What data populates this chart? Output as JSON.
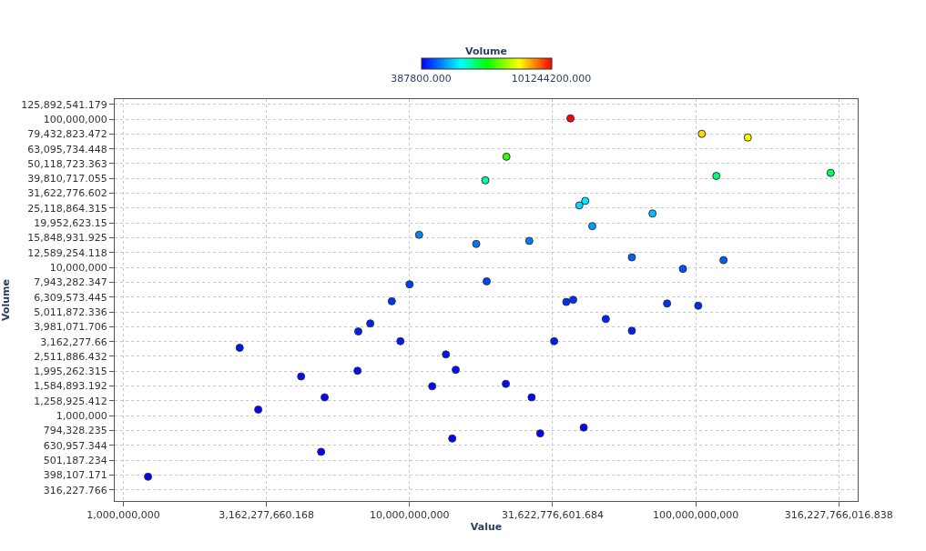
{
  "chart_data": {
    "type": "scatter",
    "xlabel": "Value",
    "ylabel": "Volume",
    "clabel": "Volume",
    "log": "xy",
    "grid": true,
    "marker": "circle",
    "legend": false,
    "x": [
      36500000000.0,
      105000000000.0,
      152000000000.0,
      21800000000.0,
      18400000000.0,
      118000000000.0,
      296000000000.0,
      41100000000.0,
      39200000000.0,
      70600000000.0,
      43500000000.0,
      10800000000.0,
      17100000000.0,
      26200000000.0,
      59800000000.0,
      125000000000.0,
      90200000000.0,
      18600000000.0,
      10000000000.0,
      8670000000.0,
      35300000000.0,
      37300000000.0,
      79400000000.0,
      102000000000.0,
      48500000000.0,
      7290000000.0,
      6620000000.0,
      59800000000.0,
      9290000000.0,
      32000000000.0,
      2550000000.0,
      13400000000.0,
      4180000000.0,
      6580000000.0,
      14500000000.0,
      21700000000.0,
      12000000000.0,
      5050000000.0,
      26700000000.0,
      2960000000.0,
      40600000000.0,
      28600000000.0,
      14100000000.0,
      4910000000.0,
      1220000000.0
    ],
    "values": [
      101244200,
      79600000,
      75200000,
      55800000,
      38700000,
      41400000,
      43400000,
      28100000,
      26200000,
      23100000,
      19000000,
      16600000,
      14400000,
      15100000,
      11700000,
      11200000,
      9790000,
      8060000,
      7690000,
      5910000,
      5850000,
      6050000,
      5710000,
      5520000,
      4490000,
      4190000,
      3700000,
      3740000,
      3180000,
      3180000,
      2870000,
      2590000,
      1840000,
      2010000,
      2040000,
      1640000,
      1580000,
      1330000,
      1330000,
      1100000,
      833000,
      760000,
      702000,
      571000,
      387800
    ],
    "cvalues": [
      101244200,
      79600000,
      75200000,
      55800000,
      38700000,
      41400000,
      43400000,
      28100000,
      26200000,
      23100000,
      19000000,
      16600000,
      14400000,
      15100000,
      11700000,
      11200000,
      9790000,
      8060000,
      7690000,
      5910000,
      5850000,
      6050000,
      5710000,
      5520000,
      4490000,
      4190000,
      3700000,
      3740000,
      3180000,
      3180000,
      2870000,
      2590000,
      1840000,
      2010000,
      2040000,
      1640000,
      1580000,
      1330000,
      1330000,
      1100000,
      833000,
      760000,
      702000,
      571000,
      387800
    ],
    "clim": [
      387800,
      101244200
    ],
    "cticks": [
      {
        "value": 387800,
        "label": "387800.000"
      },
      {
        "value": 101244200,
        "label": "101244200.000"
      }
    ],
    "xlim": [
      933000000,
      368000000000
    ],
    "xticks": [
      {
        "value": 1000000000,
        "label": "1,000,000,000"
      },
      {
        "value": 3162277660.168,
        "label": "3,162,277,660.168"
      },
      {
        "value": 10000000000,
        "label": "10,000,000,000"
      },
      {
        "value": 31622776601.684,
        "label": "31,622,776,601.684"
      },
      {
        "value": 100000000000,
        "label": "100,000,000,000"
      },
      {
        "value": 316227766016.838,
        "label": "316,227,766,016.838"
      }
    ],
    "ylim": [
      266000,
      136500000
    ],
    "yticks": [
      {
        "value": 316227.766,
        "label": "316,227.766"
      },
      {
        "value": 398107.171,
        "label": "398,107.171"
      },
      {
        "value": 501187.234,
        "label": "501,187.234"
      },
      {
        "value": 630957.344,
        "label": "630,957.344"
      },
      {
        "value": 794328.235,
        "label": "794,328.235"
      },
      {
        "value": 1000000,
        "label": "1,000,000"
      },
      {
        "value": 1258925.412,
        "label": "1,258,925.412"
      },
      {
        "value": 1584893.192,
        "label": "1,584,893.192"
      },
      {
        "value": 1995262.315,
        "label": "1,995,262.315"
      },
      {
        "value": 2511886.432,
        "label": "2,511,886.432"
      },
      {
        "value": 3162277.66,
        "label": "3,162,277.66"
      },
      {
        "value": 3981071.706,
        "label": "3,981,071.706"
      },
      {
        "value": 5011872.336,
        "label": "5,011,872.336"
      },
      {
        "value": 6309573.445,
        "label": "6,309,573.445"
      },
      {
        "value": 7943282.347,
        "label": "7,943,282.347"
      },
      {
        "value": 10000000,
        "label": "10,000,000"
      },
      {
        "value": 12589254.118,
        "label": "12,589,254.118"
      },
      {
        "value": 15848931.925,
        "label": "15,848,931.925"
      },
      {
        "value": 19952623.15,
        "label": "19,952,623.15"
      },
      {
        "value": 25118864.315,
        "label": "25,118,864.315"
      },
      {
        "value": 31622776.602,
        "label": "31,622,776.602"
      },
      {
        "value": 39810717.055,
        "label": "39,810,717.055"
      },
      {
        "value": 50118723.363,
        "label": "50,118,723.363"
      },
      {
        "value": 63095734.448,
        "label": "63,095,734.448"
      },
      {
        "value": 79432823.472,
        "label": "79,432,823.472"
      },
      {
        "value": 100000000,
        "label": "100,000,000"
      },
      {
        "value": 125892541.179,
        "label": "125,892,541.179"
      }
    ]
  }
}
